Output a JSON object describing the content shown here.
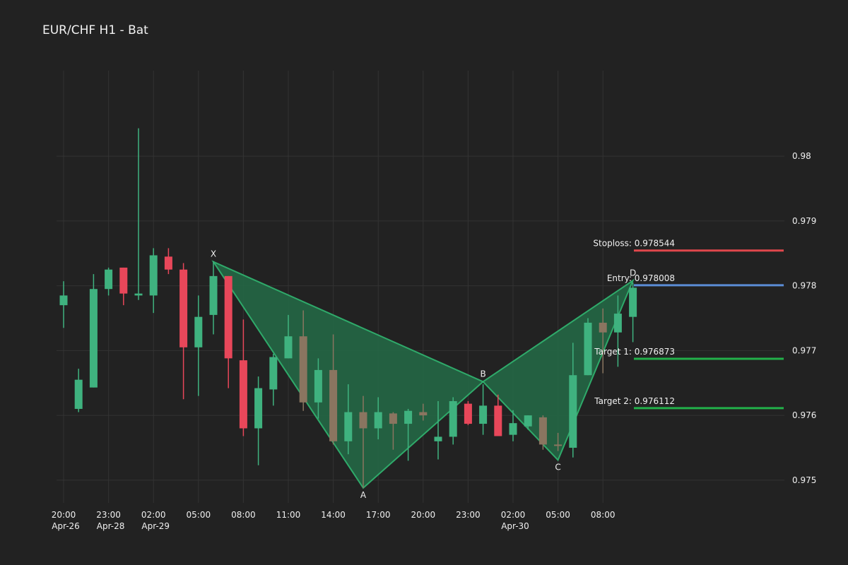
{
  "title": "EUR/CHF H1 - Bat",
  "chart_data": {
    "type": "candlestick",
    "title": "EUR/CHF H1 - Bat",
    "grid": true,
    "ylim": [
      0.97465,
      0.98132
    ],
    "y_ticks": [
      0.975,
      0.976,
      0.977,
      0.978,
      0.979,
      0.98
    ],
    "y_tick_labels": [
      "0.975",
      "0.976",
      "0.977",
      "0.978",
      "0.979",
      "0.98"
    ],
    "x_ticks": [
      {
        "index": 0,
        "label": "20:00",
        "sub": "Apr-26"
      },
      {
        "index": 3,
        "label": "23:00",
        "sub": "Apr-28"
      },
      {
        "index": 6,
        "label": "02:00",
        "sub": "Apr-29"
      },
      {
        "index": 9,
        "label": "05:00",
        "sub": ""
      },
      {
        "index": 12,
        "label": "08:00",
        "sub": ""
      },
      {
        "index": 15,
        "label": "11:00",
        "sub": ""
      },
      {
        "index": 18,
        "label": "14:00",
        "sub": ""
      },
      {
        "index": 21,
        "label": "17:00",
        "sub": ""
      },
      {
        "index": 24,
        "label": "20:00",
        "sub": ""
      },
      {
        "index": 27,
        "label": "23:00",
        "sub": ""
      },
      {
        "index": 30,
        "label": "02:00",
        "sub": "Apr-30"
      },
      {
        "index": 33,
        "label": "05:00",
        "sub": ""
      },
      {
        "index": 36,
        "label": "08:00",
        "sub": ""
      }
    ],
    "candles": [
      {
        "o": 0.9777,
        "h": 0.97807,
        "l": 0.97735,
        "c": 0.97785
      },
      {
        "o": 0.9761,
        "h": 0.97672,
        "l": 0.97605,
        "c": 0.97655
      },
      {
        "o": 0.97643,
        "h": 0.97818,
        "l": 0.97643,
        "c": 0.97795
      },
      {
        "o": 0.97795,
        "h": 0.97828,
        "l": 0.97785,
        "c": 0.97825
      },
      {
        "o": 0.97828,
        "h": 0.97828,
        "l": 0.9777,
        "c": 0.97788
      },
      {
        "o": 0.97785,
        "h": 0.98043,
        "l": 0.97778,
        "c": 0.97788
      },
      {
        "o": 0.97785,
        "h": 0.97858,
        "l": 0.97758,
        "c": 0.97847
      },
      {
        "o": 0.97845,
        "h": 0.97858,
        "l": 0.97818,
        "c": 0.97825
      },
      {
        "o": 0.97825,
        "h": 0.97835,
        "l": 0.97625,
        "c": 0.97705
      },
      {
        "o": 0.97705,
        "h": 0.97785,
        "l": 0.9763,
        "c": 0.97752
      },
      {
        "o": 0.97755,
        "h": 0.97838,
        "l": 0.97725,
        "c": 0.97815
      },
      {
        "o": 0.97815,
        "h": 0.97815,
        "l": 0.97642,
        "c": 0.97688
      },
      {
        "o": 0.97685,
        "h": 0.97748,
        "l": 0.97568,
        "c": 0.9758
      },
      {
        "o": 0.9758,
        "h": 0.9766,
        "l": 0.97523,
        "c": 0.97642
      },
      {
        "o": 0.9764,
        "h": 0.97695,
        "l": 0.97615,
        "c": 0.9769
      },
      {
        "o": 0.97688,
        "h": 0.97755,
        "l": 0.97688,
        "c": 0.97722
      },
      {
        "o": 0.97722,
        "h": 0.97762,
        "l": 0.97607,
        "c": 0.9762,
        "muted": true
      },
      {
        "o": 0.9762,
        "h": 0.97688,
        "l": 0.97595,
        "c": 0.9767
      },
      {
        "o": 0.9767,
        "h": 0.97725,
        "l": 0.97555,
        "c": 0.9756,
        "muted": true
      },
      {
        "o": 0.9756,
        "h": 0.97648,
        "l": 0.9754,
        "c": 0.97605
      },
      {
        "o": 0.97605,
        "h": 0.9763,
        "l": 0.97488,
        "c": 0.9758,
        "muted": true
      },
      {
        "o": 0.9758,
        "h": 0.97628,
        "l": 0.97563,
        "c": 0.97605
      },
      {
        "o": 0.97603,
        "h": 0.97605,
        "l": 0.97547,
        "c": 0.97587,
        "muted": true
      },
      {
        "o": 0.97587,
        "h": 0.9761,
        "l": 0.9753,
        "c": 0.97607
      },
      {
        "o": 0.97605,
        "h": 0.97618,
        "l": 0.97592,
        "c": 0.976,
        "muted": true
      },
      {
        "o": 0.9756,
        "h": 0.97622,
        "l": 0.97532,
        "c": 0.97567
      },
      {
        "o": 0.97567,
        "h": 0.97628,
        "l": 0.97555,
        "c": 0.97622
      },
      {
        "o": 0.97618,
        "h": 0.97622,
        "l": 0.97585,
        "c": 0.97587
      },
      {
        "o": 0.97587,
        "h": 0.97648,
        "l": 0.9757,
        "c": 0.97615
      },
      {
        "o": 0.97615,
        "h": 0.97632,
        "l": 0.97568,
        "c": 0.97568
      },
      {
        "o": 0.9757,
        "h": 0.97608,
        "l": 0.9756,
        "c": 0.97588
      },
      {
        "o": 0.97583,
        "h": 0.976,
        "l": 0.97578,
        "c": 0.976
      },
      {
        "o": 0.97597,
        "h": 0.976,
        "l": 0.97547,
        "c": 0.97555,
        "muted": true
      },
      {
        "o": 0.97553,
        "h": 0.97573,
        "l": 0.97545,
        "c": 0.97555,
        "muted": true
      },
      {
        "o": 0.9755,
        "h": 0.97712,
        "l": 0.97535,
        "c": 0.97662
      },
      {
        "o": 0.97662,
        "h": 0.9775,
        "l": 0.97662,
        "c": 0.97743
      },
      {
        "o": 0.97743,
        "h": 0.97765,
        "l": 0.97665,
        "c": 0.97728,
        "muted": true
      },
      {
        "o": 0.97728,
        "h": 0.97785,
        "l": 0.97675,
        "c": 0.97757
      },
      {
        "o": 0.97752,
        "h": 0.97805,
        "l": 0.97713,
        "c": 0.97797
      }
    ],
    "pattern": {
      "name": "Bat",
      "points": [
        {
          "label": "X",
          "index": 10,
          "price": 0.97837
        },
        {
          "label": "A",
          "index": 20,
          "price": 0.97488
        },
        {
          "label": "B",
          "index": 28,
          "price": 0.97652
        },
        {
          "label": "C",
          "index": 33,
          "price": 0.97531
        },
        {
          "label": "D",
          "index": 38,
          "price": 0.97808
        }
      ]
    },
    "levels": [
      {
        "label": "Stoploss: 0.978544",
        "value": 0.978544,
        "color": "#e0474c"
      },
      {
        "label": "Entry: 0.978008",
        "value": 0.978008,
        "color": "#5b8dd6"
      },
      {
        "label": "Target 1: 0.976873",
        "value": 0.976873,
        "color": "#22b04a"
      },
      {
        "label": "Target 2: 0.976112",
        "value": 0.976112,
        "color": "#22b04a"
      }
    ]
  },
  "colors": {
    "background": "#222222",
    "grid": "#333333",
    "up": "#3fb27f",
    "down": "#e8475a",
    "muted": "#8a7560",
    "pattern_fill": "#236b47",
    "pattern_stroke": "#2faa6a"
  }
}
